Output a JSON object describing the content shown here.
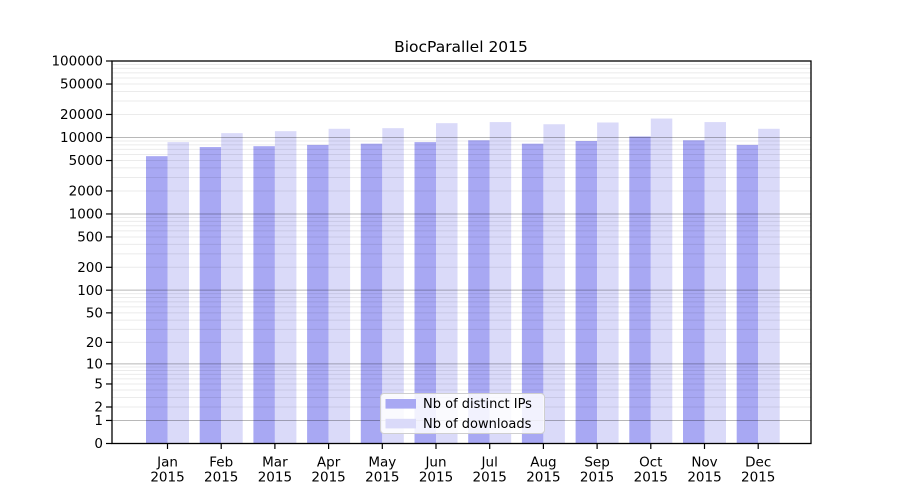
{
  "chart_data": {
    "type": "bar",
    "title": "BiocParallel 2015",
    "categories": [
      "Jan",
      "Feb",
      "Mar",
      "Apr",
      "May",
      "Jun",
      "Jul",
      "Aug",
      "Sep",
      "Oct",
      "Nov",
      "Dec"
    ],
    "x_year_label": "2015",
    "series": [
      {
        "name": "Nb of distinct IPs",
        "color": "#a8a8f3",
        "values": [
          5700,
          7500,
          7700,
          8000,
          8300,
          8700,
          9200,
          8300,
          9000,
          10300,
          9200,
          8000
        ]
      },
      {
        "name": "Nb of downloads",
        "color": "#dadaf9",
        "values": [
          8700,
          11400,
          12100,
          13000,
          13250,
          15400,
          15900,
          14900,
          15700,
          17700,
          15900,
          13000
        ]
      }
    ],
    "xlabel": "",
    "ylabel": "",
    "y_axis": {
      "scale": "log10(v+1)",
      "max": 100000,
      "tick_labels": [
        100000,
        50000,
        20000,
        10000,
        5000,
        2000,
        1000,
        500,
        200,
        100,
        50,
        20,
        10,
        5,
        2,
        1,
        0
      ]
    },
    "grid": "minor lines at 1-9 per decade, darker lines at decades, drawn over bars",
    "legend": {
      "position": "bottom-center",
      "items": [
        "Nb of distinct IPs",
        "Nb of downloads"
      ]
    },
    "colors": {
      "frame": "#000000",
      "background": "#ffffff"
    }
  }
}
